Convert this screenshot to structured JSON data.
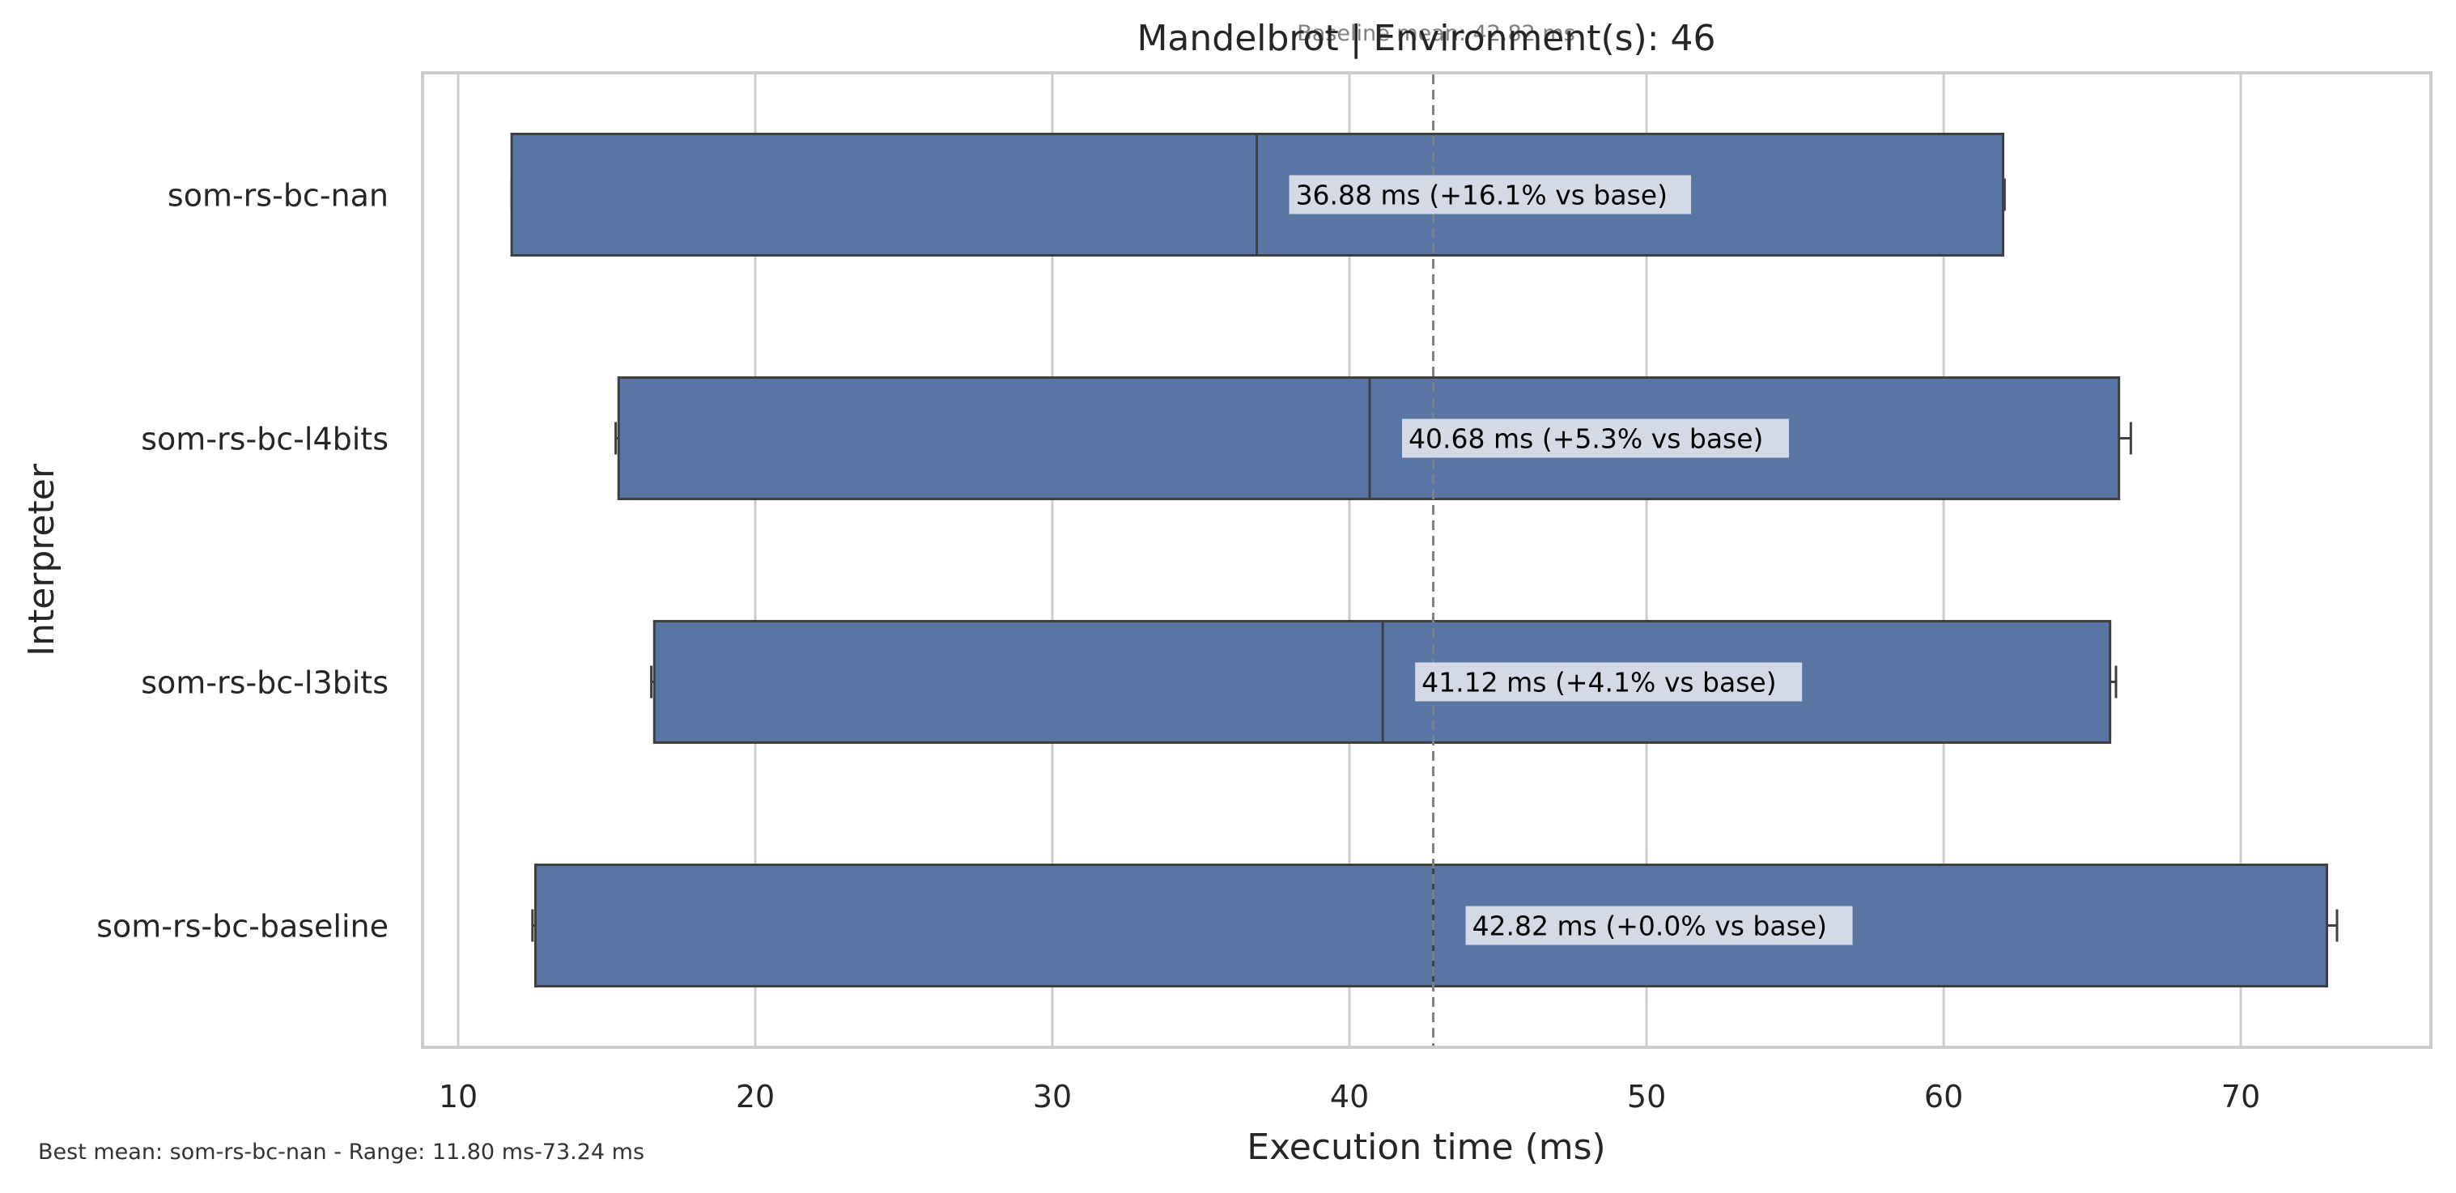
{
  "chart_data": {
    "type": "boxplot",
    "orientation": "horizontal",
    "title": "Mandelbrot | Environment(s): 46",
    "xlabel": "Execution time (ms)",
    "ylabel": "Interpreter",
    "xlim": [
      8.8,
      76.4
    ],
    "xticks": [
      10,
      20,
      30,
      40,
      50,
      60,
      70
    ],
    "grid": "vertical",
    "categories": [
      "som-rs-bc-nan",
      "som-rs-bc-l4bits",
      "som-rs-bc-l3bits",
      "som-rs-bc-baseline"
    ],
    "boxes": [
      {
        "name": "som-rs-bc-nan",
        "whisker_low": 11.8,
        "q1": 11.8,
        "median": 36.88,
        "q3": 62.0,
        "whisker_high": 62.05,
        "label": "36.88 ms  (+16.1% vs base)"
      },
      {
        "name": "som-rs-bc-l4bits",
        "whisker_low": 15.3,
        "q1": 15.4,
        "median": 40.68,
        "q3": 65.9,
        "whisker_high": 66.3,
        "label": "40.68 ms  (+5.3% vs base)"
      },
      {
        "name": "som-rs-bc-l3bits",
        "whisker_low": 16.5,
        "q1": 16.6,
        "median": 41.12,
        "q3": 65.6,
        "whisker_high": 65.8,
        "label": "41.12 ms  (+4.1% vs base)"
      },
      {
        "name": "som-rs-bc-baseline",
        "whisker_low": 12.5,
        "q1": 12.6,
        "median": 42.82,
        "q3": 72.9,
        "whisker_high": 73.24,
        "label": "42.82 ms  (+0.0% vs base)"
      }
    ],
    "baseline": {
      "value": 42.82,
      "label": "Baseline mean: 42.82 ms"
    },
    "colors": {
      "box_fill": "#5875a4",
      "box_edge": "#3f3f3f",
      "grid": "#cccccc",
      "axes_edge": "#cccccc",
      "baseline_line": "#808080",
      "label_bg": "#d4d9e6"
    },
    "footer": "Best mean: som-rs-bc-nan - Range: 11.80 ms-73.24 ms"
  }
}
